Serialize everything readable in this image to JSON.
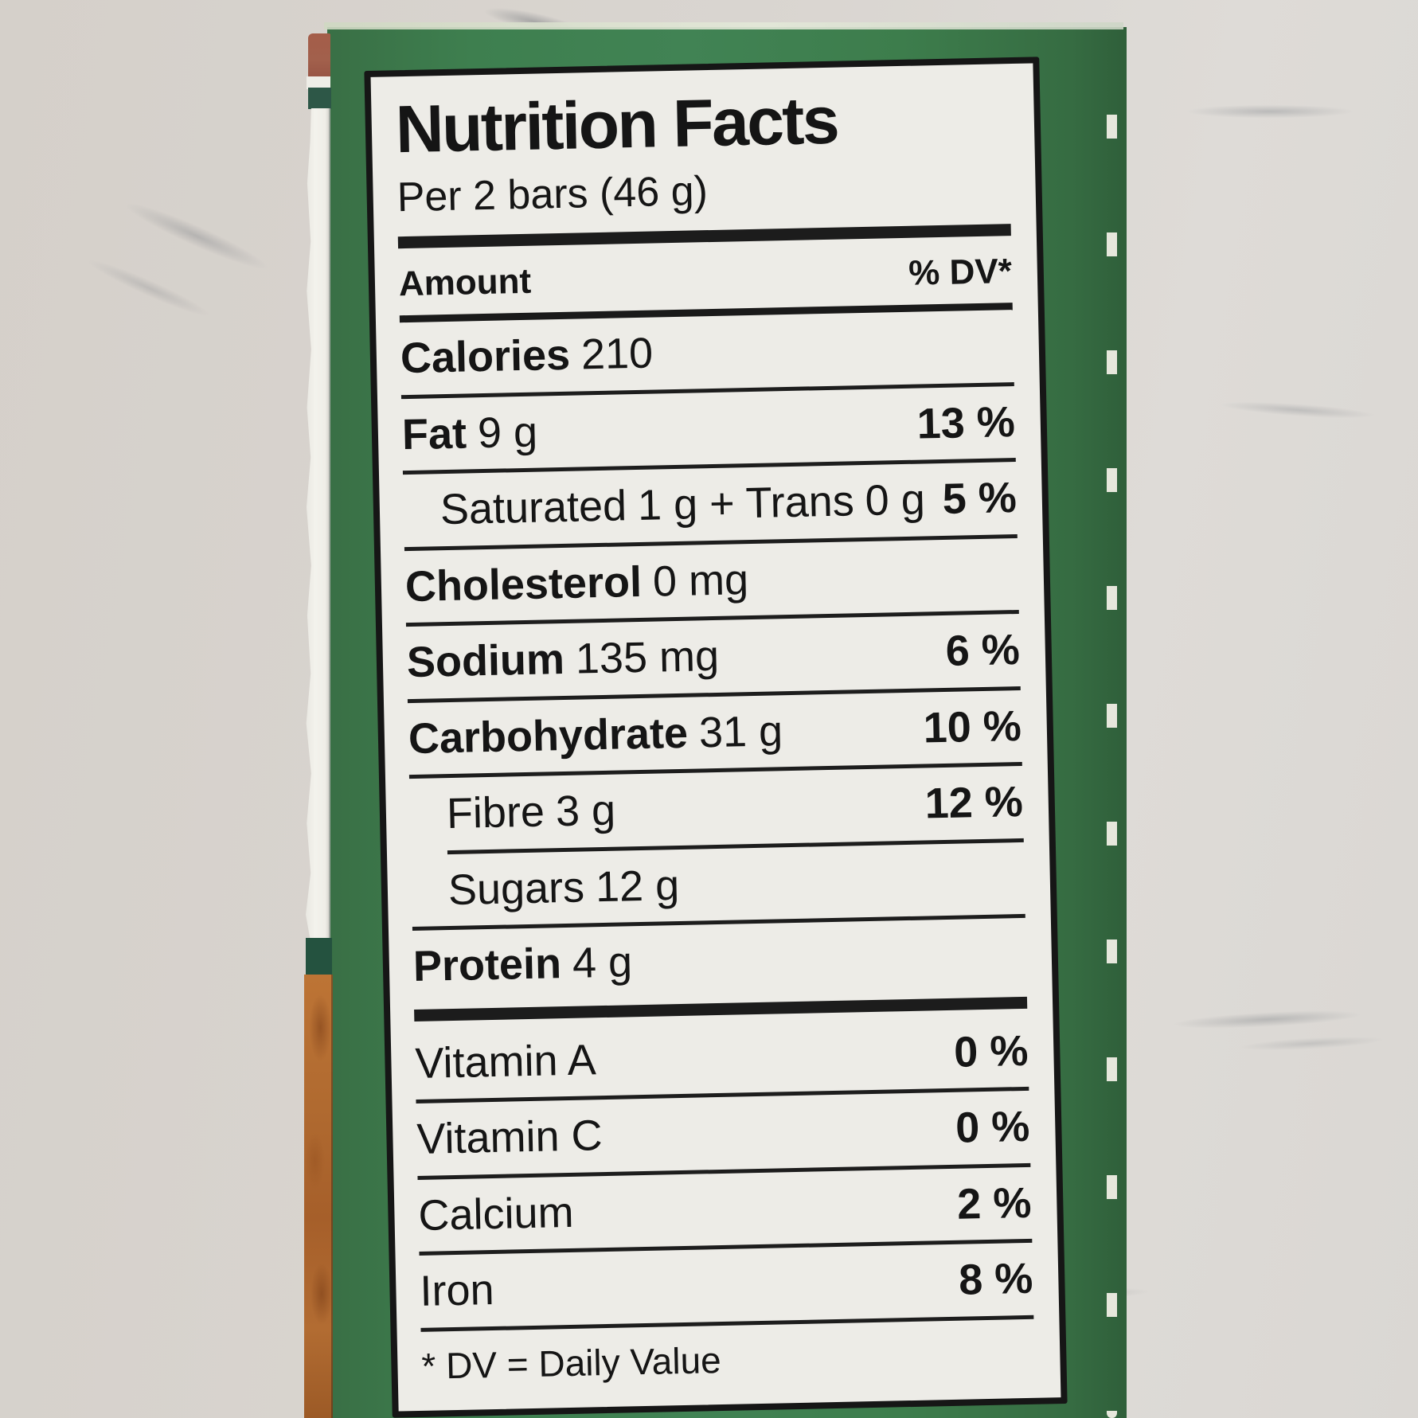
{
  "colors": {
    "box_green": "#3e7f4f",
    "box_dark_green_stripe": "#2d5747",
    "box_red_patch": "#a2604c",
    "box_granola_orange": "#b06a30",
    "box_edge_brown": "#6f3a27",
    "label_background": "#edece7",
    "label_text": "#151515",
    "marble_background": "#d9d5d0"
  },
  "label": {
    "title": "Nutrition Facts",
    "serving": "Per 2 bars (46 g)",
    "columns": {
      "amount": "Amount",
      "dv": "% DV*"
    },
    "rows": [
      {
        "name": "Calories",
        "amount": "210",
        "dv": ""
      },
      {
        "name": "Fat",
        "amount": "9 g",
        "dv": "13 %"
      },
      {
        "name": "Saturated",
        "amount": "1 g",
        "name2": "+ Trans",
        "amount2": "0 g",
        "dv": "5 %"
      },
      {
        "name": "Cholesterol",
        "amount": "0 mg",
        "dv": ""
      },
      {
        "name": "Sodium",
        "amount": "135 mg",
        "dv": "6 %"
      },
      {
        "name": "Carbohydrate",
        "amount": "31 g",
        "dv": "10 %"
      },
      {
        "name": "Fibre",
        "amount": "3 g",
        "dv": "12 %"
      },
      {
        "name": "Sugars",
        "amount": "12 g",
        "dv": ""
      },
      {
        "name": "Protein",
        "amount": "4 g",
        "dv": ""
      },
      {
        "name": "Vitamin A",
        "amount": "",
        "dv": "0 %"
      },
      {
        "name": "Vitamin C",
        "amount": "",
        "dv": "0 %"
      },
      {
        "name": "Calcium",
        "amount": "",
        "dv": "2 %"
      },
      {
        "name": "Iron",
        "amount": "",
        "dv": "8 %"
      }
    ],
    "footnote": "* DV = Daily Value"
  }
}
